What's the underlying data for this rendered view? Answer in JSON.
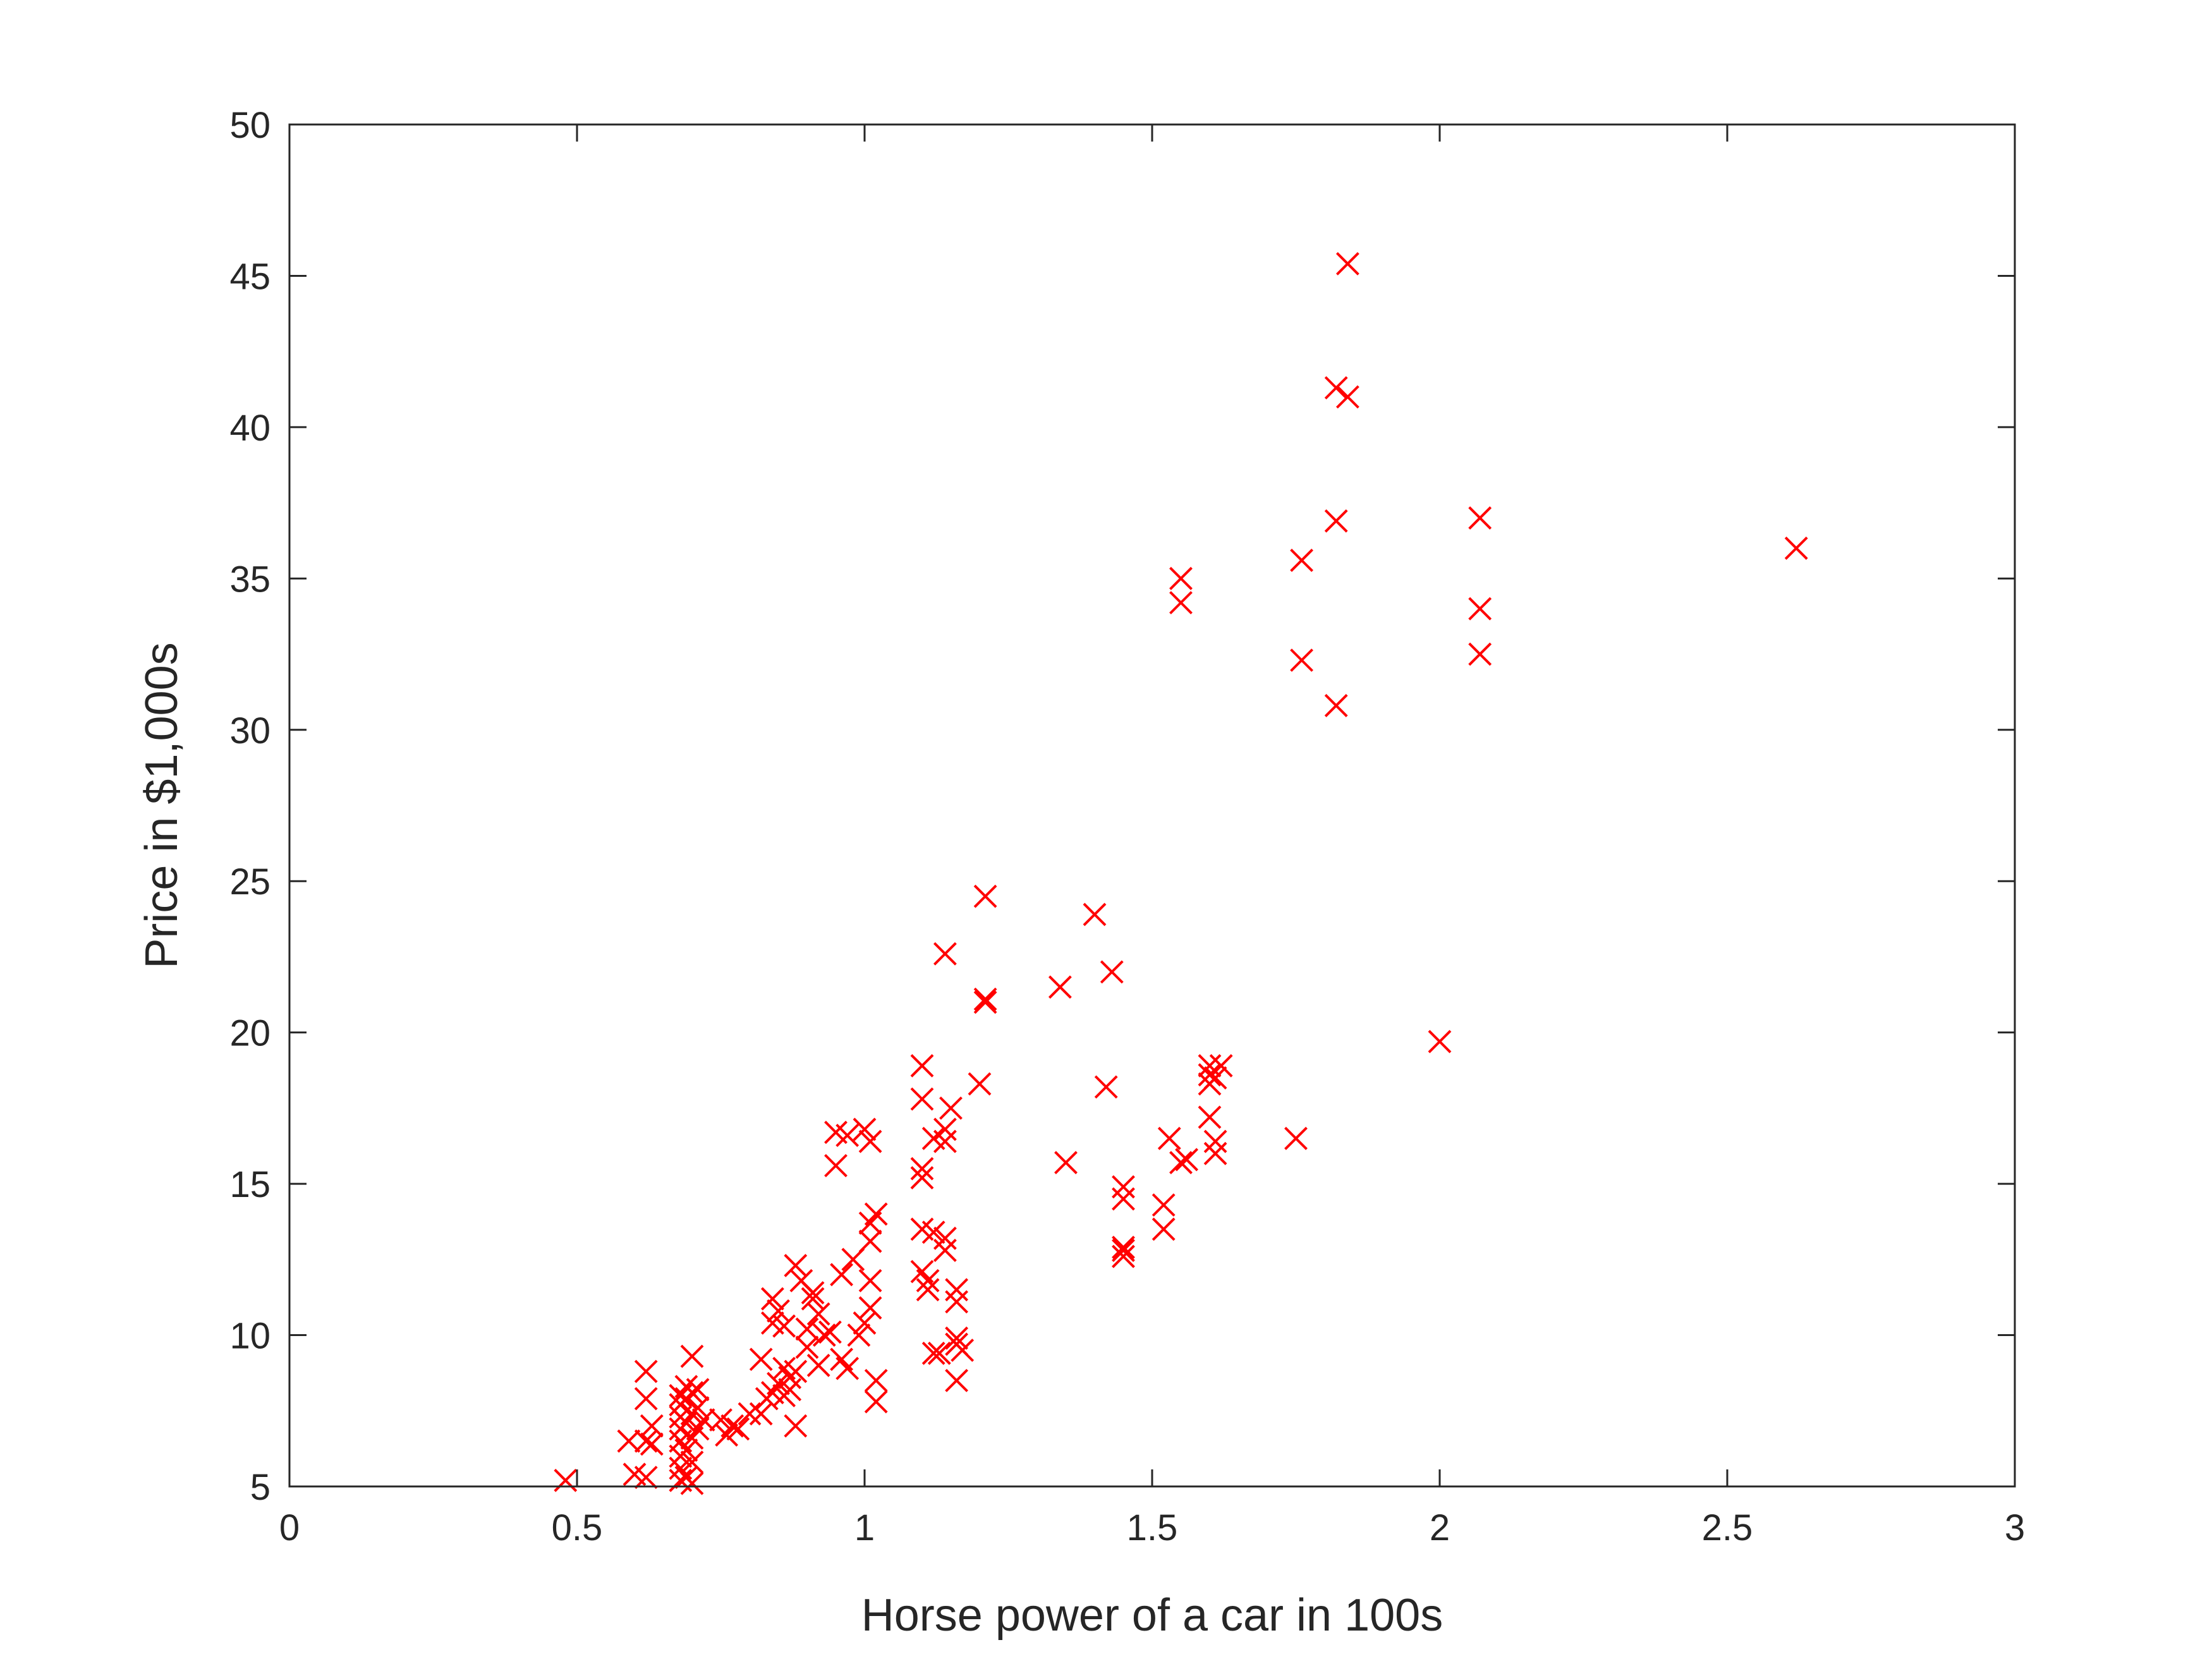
{
  "chart_data": {
    "type": "scatter",
    "title": "",
    "xlabel": "Horse power of a car in 100s",
    "ylabel": "Price in $1,000s",
    "xlim": [
      0,
      3
    ],
    "ylim": [
      5,
      50
    ],
    "xticks": [
      0,
      0.5,
      1,
      1.5,
      2,
      2.5,
      3
    ],
    "xtick_labels": [
      "0",
      "0.5",
      "1",
      "1.5",
      "2",
      "2.5",
      "3"
    ],
    "yticks": [
      5,
      10,
      15,
      20,
      25,
      30,
      35,
      40,
      45,
      50
    ],
    "ytick_labels": [
      "5",
      "10",
      "15",
      "20",
      "25",
      "30",
      "35",
      "40",
      "45",
      "50"
    ],
    "grid": false,
    "marker": "x",
    "marker_color": "#ff0000",
    "axes_color": "#262626",
    "series": [
      {
        "points": [
          [
            0.48,
            5.2
          ],
          [
            0.59,
            6.5
          ],
          [
            0.6,
            5.4
          ],
          [
            0.62,
            6.5
          ],
          [
            0.62,
            7.9
          ],
          [
            0.62,
            8.8
          ],
          [
            0.62,
            5.3
          ],
          [
            0.63,
            6.4
          ],
          [
            0.63,
            7.0
          ],
          [
            0.68,
            5.2
          ],
          [
            0.68,
            5.6
          ],
          [
            0.68,
            6.0
          ],
          [
            0.68,
            6.5
          ],
          [
            0.68,
            6.9
          ],
          [
            0.68,
            7.3
          ],
          [
            0.68,
            7.7
          ],
          [
            0.68,
            8.0
          ],
          [
            0.69,
            5.3
          ],
          [
            0.69,
            6.2
          ],
          [
            0.69,
            7.1
          ],
          [
            0.69,
            7.9
          ],
          [
            0.69,
            8.3
          ],
          [
            0.7,
            5.1
          ],
          [
            0.7,
            5.8
          ],
          [
            0.7,
            6.6
          ],
          [
            0.7,
            7.4
          ],
          [
            0.7,
            8.1
          ],
          [
            0.7,
            9.3
          ],
          [
            0.71,
            6.9
          ],
          [
            0.71,
            7.6
          ],
          [
            0.71,
            8.2
          ],
          [
            0.72,
            7.2
          ],
          [
            0.75,
            7.2
          ],
          [
            0.76,
            6.7
          ],
          [
            0.77,
            7.0
          ],
          [
            0.78,
            6.9
          ],
          [
            0.8,
            7.4
          ],
          [
            0.82,
            7.4
          ],
          [
            0.82,
            9.2
          ],
          [
            0.83,
            7.9
          ],
          [
            0.84,
            8.1
          ],
          [
            0.84,
            10.4
          ],
          [
            0.84,
            11.2
          ],
          [
            0.85,
            8.4
          ],
          [
            0.85,
            10.8
          ],
          [
            0.86,
            8.0
          ],
          [
            0.86,
            8.9
          ],
          [
            0.86,
            10.3
          ],
          [
            0.87,
            8.2
          ],
          [
            0.87,
            8.6
          ],
          [
            0.88,
            8.8
          ],
          [
            0.88,
            12.3
          ],
          [
            0.88,
            7.0
          ],
          [
            0.89,
            11.8
          ],
          [
            0.9,
            9.6
          ],
          [
            0.9,
            10.2
          ],
          [
            0.91,
            11.2
          ],
          [
            0.91,
            11.4
          ],
          [
            0.92,
            9.0
          ],
          [
            0.92,
            10.7
          ],
          [
            0.93,
            10.0
          ],
          [
            0.94,
            10.1
          ],
          [
            0.95,
            15.6
          ],
          [
            0.95,
            16.7
          ],
          [
            0.96,
            9.2
          ],
          [
            0.96,
            12.0
          ],
          [
            0.97,
            8.9
          ],
          [
            0.97,
            16.6
          ],
          [
            0.98,
            12.5
          ],
          [
            0.99,
            10.0
          ],
          [
            1.0,
            10.4
          ],
          [
            1.0,
            16.8
          ],
          [
            1.01,
            10.9
          ],
          [
            1.01,
            11.8
          ],
          [
            1.01,
            13.1
          ],
          [
            1.01,
            13.7
          ],
          [
            1.01,
            16.4
          ],
          [
            1.02,
            7.8
          ],
          [
            1.02,
            8.5
          ],
          [
            1.02,
            14.0
          ],
          [
            1.1,
            12.1
          ],
          [
            1.1,
            13.5
          ],
          [
            1.1,
            15.2
          ],
          [
            1.1,
            15.5
          ],
          [
            1.1,
            17.8
          ],
          [
            1.1,
            18.9
          ],
          [
            1.11,
            11.5
          ],
          [
            1.11,
            11.8
          ],
          [
            1.12,
            9.4
          ],
          [
            1.12,
            13.4
          ],
          [
            1.12,
            16.5
          ],
          [
            1.13,
            9.4
          ],
          [
            1.14,
            12.8
          ],
          [
            1.14,
            13.2
          ],
          [
            1.14,
            16.4
          ],
          [
            1.14,
            16.8
          ],
          [
            1.14,
            22.6
          ],
          [
            1.15,
            17.5
          ],
          [
            1.16,
            8.5
          ],
          [
            1.16,
            9.7
          ],
          [
            1.16,
            9.9
          ],
          [
            1.16,
            11.1
          ],
          [
            1.16,
            11.5
          ],
          [
            1.17,
            9.5
          ],
          [
            1.2,
            18.3
          ],
          [
            1.21,
            21.0
          ],
          [
            1.21,
            21.1
          ],
          [
            1.21,
            24.5
          ],
          [
            1.34,
            21.5
          ],
          [
            1.35,
            15.7
          ],
          [
            1.4,
            23.9
          ],
          [
            1.42,
            18.2
          ],
          [
            1.43,
            22.0
          ],
          [
            1.45,
            12.6
          ],
          [
            1.45,
            12.8
          ],
          [
            1.45,
            12.9
          ],
          [
            1.45,
            14.5
          ],
          [
            1.45,
            14.9
          ],
          [
            1.52,
            13.5
          ],
          [
            1.52,
            14.3
          ],
          [
            1.53,
            16.5
          ],
          [
            1.55,
            15.7
          ],
          [
            1.55,
            34.2
          ],
          [
            1.55,
            35.0
          ],
          [
            1.56,
            15.8
          ],
          [
            1.6,
            17.2
          ],
          [
            1.6,
            18.3
          ],
          [
            1.6,
            18.6
          ],
          [
            1.6,
            18.9
          ],
          [
            1.61,
            16.0
          ],
          [
            1.61,
            16.4
          ],
          [
            1.61,
            18.5
          ],
          [
            1.62,
            18.9
          ],
          [
            1.75,
            16.5
          ],
          [
            1.76,
            32.3
          ],
          [
            1.76,
            35.6
          ],
          [
            1.82,
            30.8
          ],
          [
            1.82,
            36.9
          ],
          [
            1.82,
            41.3
          ],
          [
            1.84,
            41.0
          ],
          [
            1.84,
            45.4
          ],
          [
            2.0,
            19.7
          ],
          [
            2.07,
            32.5
          ],
          [
            2.07,
            34.0
          ],
          [
            2.07,
            37.0
          ],
          [
            2.62,
            36.0
          ]
        ]
      }
    ]
  }
}
